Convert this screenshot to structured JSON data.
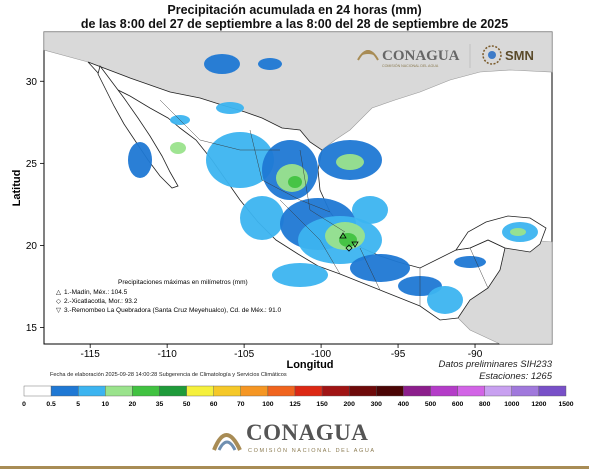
{
  "title_line1": "Precipitación acumulada en 24 horas (mm)",
  "title_line2": "de las 8:00 del 27 de septiembre a las 8:00 del 28 de septiembre de 2025",
  "ylabel": "Latitud",
  "xlabel": "Longitud",
  "x_ticks": [
    "-115",
    "-110",
    "-105",
    "-100",
    "-95",
    "-90"
  ],
  "y_ticks": [
    "30",
    "25",
    "20",
    "15"
  ],
  "logo_conagua": "CONAGUA",
  "logo_conagua_sub": "COMISIÓN NACIONAL DEL AGUA",
  "logo_smn": "SMN",
  "legend_title": "Precipitaciones máximas en milímetros (mm)",
  "legend_items": [
    {
      "symbol": "△",
      "text": "1.-Madín, Méx.: 104.5"
    },
    {
      "symbol": "◇",
      "text": "2.-Xicatlacotla, Mor.: 93.2"
    },
    {
      "symbol": "▽",
      "text": "3.-Remombeo La Quebradora (Santa Cruz Meyehualco), Cd. de Méx.: 91.0"
    }
  ],
  "footer_date": "Fecha de elaboración 2025-09-28 14:00:28 Subgerencia de Climatología y Servicios Climáticos",
  "footer_prelim": "Datos preliminares SIH233",
  "footer_stations": "Estaciones:   1265",
  "colorbar": {
    "labels": [
      "0",
      "0.5",
      "5",
      "10",
      "20",
      "35",
      "50",
      "60",
      "70",
      "100",
      "125",
      "150",
      "200",
      "300",
      "400",
      "500",
      "600",
      "800",
      "1000",
      "1200",
      "1500"
    ],
    "colors": [
      "#ffffff",
      "#1f78d4",
      "#3cb4f0",
      "#9ae38c",
      "#41c241",
      "#1f9b3a",
      "#f5f03c",
      "#f5c828",
      "#f59623",
      "#f0641e",
      "#dc2814",
      "#a01414",
      "#6e0a0a",
      "#4b0505",
      "#8c1e8c",
      "#b43cc8",
      "#d264e6",
      "#c8a0f0",
      "#a078dc",
      "#7850c8"
    ]
  },
  "map_data": {
    "projection": "equirectangular",
    "lon_range": [
      -118,
      -85
    ],
    "lat_range": [
      14,
      33
    ]
  }
}
